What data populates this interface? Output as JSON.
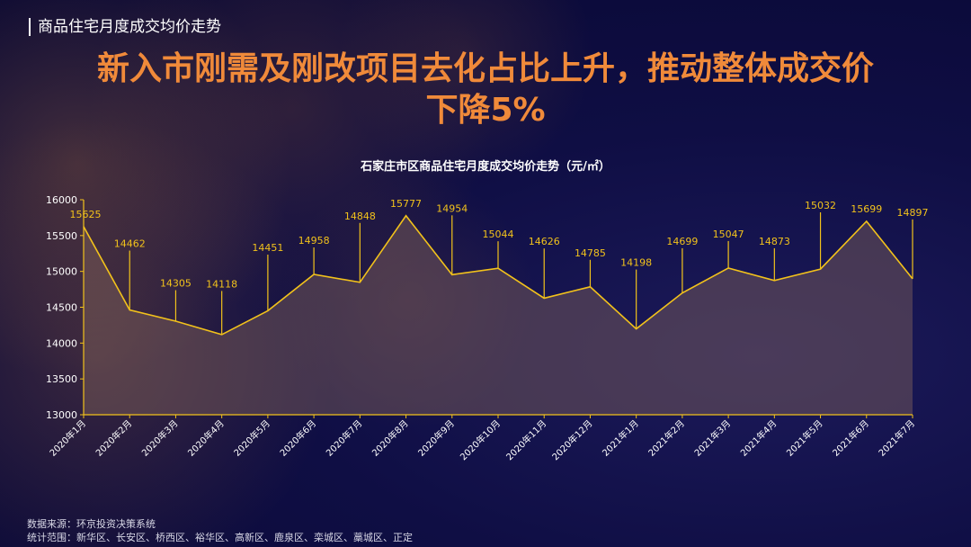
{
  "header": {
    "section_label": "商品住宅月度成交均价走势",
    "headline_line1": "新入市刚需及刚改项目去化占比上升，推动整体成交价",
    "headline_line2": "下降5%"
  },
  "footer": {
    "source": "数据来源：环京投资决策系统",
    "scope": "统计范围：新华区、长安区、桥西区、裕华区、高新区、鹿泉区、栾城区、藁城区、正定"
  },
  "colors": {
    "line": "#f2c21b",
    "label": "#f2c21b",
    "fill": "rgba(130,100,90,0.45)",
    "axis": "#f2c21b",
    "tick_text": "#ffffff",
    "headline": "#f08a3a"
  },
  "chart_data": {
    "type": "area",
    "title": "石家庄市区商品住宅月度成交均价走势（元/㎡）",
    "xlabel": "",
    "ylabel": "",
    "ylim": [
      13000,
      16000
    ],
    "yticks": [
      13000,
      13500,
      14000,
      14500,
      15000,
      15500,
      16000
    ],
    "grid": false,
    "categories": [
      "2020年1月",
      "2020年2月",
      "2020年3月",
      "2020年4月",
      "2020年5月",
      "2020年6月",
      "2020年7月",
      "2020年8月",
      "2020年9月",
      "2020年10月",
      "2020年11月",
      "2020年12月",
      "2021年1月",
      "2021年2月",
      "2021年3月",
      "2021年4月",
      "2021年5月",
      "2021年6月",
      "2021年7月"
    ],
    "values": [
      15625,
      14462,
      14305,
      14118,
      14451,
      14958,
      14848,
      15777,
      14954,
      15044,
      14626,
      14785,
      14198,
      14699,
      15047,
      14873,
      15032,
      15699,
      14897
    ]
  }
}
